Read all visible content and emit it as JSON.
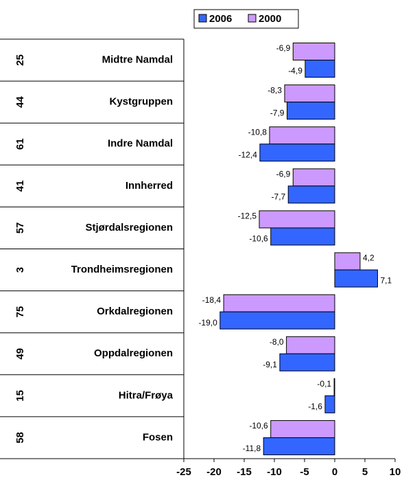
{
  "chart_data": {
    "type": "bar",
    "orientation": "horizontal",
    "categories": [
      "Midtre Namdal",
      "Kystgruppen",
      "Indre Namdal",
      "Innherred",
      "Stjørdalsregionen",
      "Trondheimsregionen",
      "Orkdalregionen",
      "Oppdalregionen",
      "Hitra/Frøya",
      "Fosen"
    ],
    "row_numbers": [
      25,
      44,
      61,
      41,
      57,
      3,
      75,
      49,
      15,
      58
    ],
    "series": [
      {
        "name": "2006",
        "color": "#3366ff",
        "values": [
          -4.9,
          -7.9,
          -12.4,
          -7.7,
          -10.6,
          7.1,
          -19.0,
          -9.1,
          -1.6,
          -11.8
        ],
        "value_labels": [
          "-4,9",
          "-7,9",
          "-12,4",
          "-7,7",
          "-10,6",
          "7,1",
          "-19,0",
          "-9,1",
          "-1,6",
          "-11,8"
        ]
      },
      {
        "name": "2000",
        "color": "#cc99ff",
        "values": [
          -6.9,
          -8.3,
          -10.8,
          -6.9,
          -12.5,
          4.2,
          -18.4,
          -8.0,
          -0.1,
          -10.6
        ],
        "value_labels": [
          "-6,9",
          "-8,3",
          "-10,8",
          "-6,9",
          "-12,5",
          "4,2",
          "-18,4",
          "-8,0",
          "-0,1",
          "-10,6"
        ]
      }
    ],
    "xlim": [
      -25,
      10
    ],
    "xticks": [
      -25,
      -20,
      -15,
      -10,
      -5,
      0,
      5,
      10
    ],
    "legend": "top"
  }
}
